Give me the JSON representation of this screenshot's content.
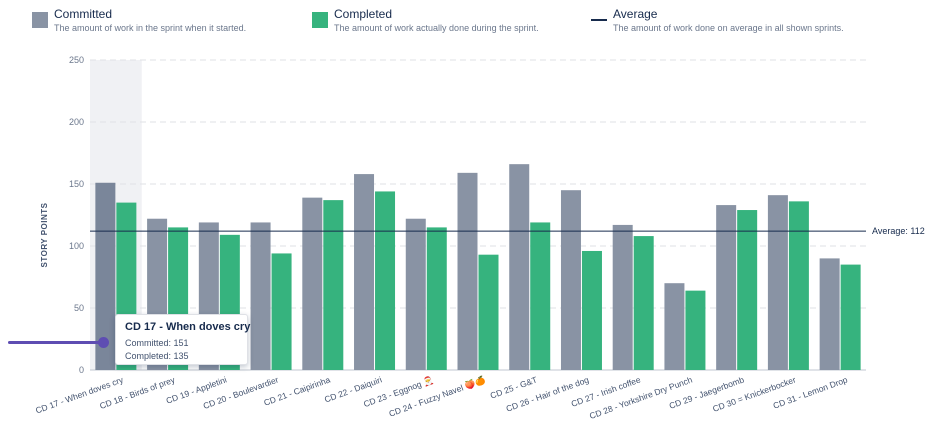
{
  "legend": {
    "committed": {
      "name": "Committed",
      "desc": "The amount of work in the sprint when it started.",
      "color": "#8993a4"
    },
    "completed": {
      "name": "Completed",
      "desc": "The amount of work actually done during the sprint.",
      "color": "#36b37e"
    },
    "average": {
      "name": "Average",
      "desc": "The amount of work done on average in all shown sprints.",
      "color": "#172b4d"
    }
  },
  "chart_data": {
    "type": "bar",
    "ylabel": "STORY POINTS",
    "ylim": [
      0,
      250
    ],
    "yticks": [
      0,
      50,
      100,
      150,
      200,
      250
    ],
    "grid": true,
    "categories": [
      "CD 17 - When doves cry",
      "CD 18 - Birds of prey",
      "CD 19 - Appletini",
      "CD 20 - Boulevardier",
      "CD 21 - Caipirinha",
      "CD 22 - Daiquiri",
      "CD 23 - Eggnog 🎅",
      "CD 24 - Fuzzy Navel 🍑🍊",
      "CD 25 - G&T",
      "CD 26 - Hair of the dog",
      "CD 27 - Irish coffee",
      "CD 28 - Yorkshire Dry Punch",
      "CD 29 - Jaegerbomb",
      "CD 30 = Knickerbocker",
      "CD 31 - Lemon Drop"
    ],
    "series": [
      {
        "name": "Committed",
        "color": "#8993a4",
        "values": [
          151,
          122,
          119,
          119,
          139,
          158,
          122,
          159,
          166,
          145,
          117,
          70,
          133,
          141,
          90
        ]
      },
      {
        "name": "Completed",
        "color": "#36b37e",
        "values": [
          135,
          115,
          109,
          94,
          137,
          144,
          115,
          93,
          119,
          96,
          108,
          64,
          129,
          136,
          85
        ]
      }
    ],
    "average": {
      "value": 112,
      "label": "Average: 112"
    },
    "highlight_index": 0
  },
  "tooltip": {
    "title": "CD 17 - When doves cry",
    "committed": "Committed: 151",
    "completed": "Completed: 135"
  }
}
